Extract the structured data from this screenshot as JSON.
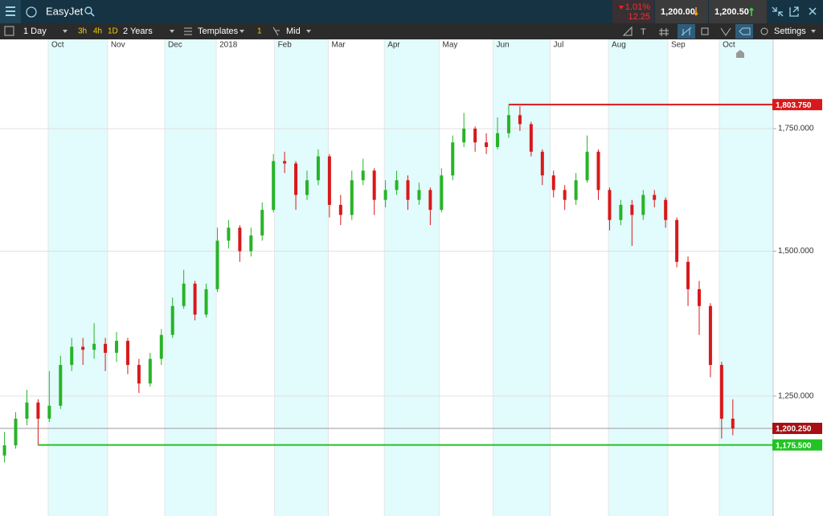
{
  "header": {
    "title": "EasyJet",
    "change_pct": "1.01%",
    "change": "12.25",
    "sell": "1,200.00",
    "buy": "1,200.50"
  },
  "toolbar": {
    "interval": "1 Day",
    "quick": [
      "3h",
      "4h",
      "1D"
    ],
    "range": "2 Years",
    "templates": "Templates",
    "count": "1",
    "price_type": "Mid",
    "settings": "Settings"
  },
  "chart_data": {
    "type": "candlestick",
    "log_scale": true,
    "shade_alternate": true,
    "up_color": "#27b427",
    "down_color": "#d8191b",
    "categories": [
      null,
      null,
      null,
      null,
      null,
      null,
      null,
      null,
      null,
      null,
      null,
      null,
      null,
      null,
      null,
      null,
      null,
      null,
      null,
      null,
      null,
      null,
      null,
      null,
      null,
      null,
      null,
      null,
      null,
      null,
      null,
      null,
      null,
      null,
      null,
      null,
      null,
      null,
      null,
      null,
      null,
      null,
      null,
      null,
      null,
      null,
      null,
      null,
      null,
      null,
      null,
      null,
      null,
      null,
      null,
      null,
      null,
      null,
      null,
      null,
      null,
      null,
      null,
      null,
      null,
      null
    ],
    "open": [
      1160,
      1175,
      1215,
      1240,
      1215,
      1235,
      1300,
      1330,
      1325,
      1335,
      1320,
      1340,
      1300,
      1270,
      1310,
      1350,
      1400,
      1440,
      1385,
      1430,
      1520,
      1545,
      1500,
      1530,
      1580,
      1680,
      1675,
      1610,
      1640,
      1690,
      1590,
      1570,
      1640,
      1660,
      1600,
      1620,
      1640,
      1600,
      1620,
      1580,
      1650,
      1720,
      1750,
      1720,
      1710,
      1740,
      1780,
      1760,
      1700,
      1650,
      1620,
      1600,
      1640,
      1700,
      1620,
      1560,
      1590,
      1570,
      1610,
      1600,
      1560,
      1480,
      1430,
      1400,
      1300,
      1215
    ],
    "high": [
      1195,
      1225,
      1260,
      1245,
      1290,
      1315,
      1345,
      1345,
      1370,
      1345,
      1355,
      1345,
      1310,
      1320,
      1360,
      1415,
      1465,
      1445,
      1440,
      1545,
      1560,
      1550,
      1545,
      1595,
      1695,
      1700,
      1680,
      1660,
      1705,
      1695,
      1610,
      1660,
      1685,
      1665,
      1640,
      1660,
      1650,
      1635,
      1625,
      1665,
      1735,
      1785,
      1755,
      1740,
      1775,
      1803.75,
      1800,
      1765,
      1705,
      1660,
      1630,
      1655,
      1735,
      1705,
      1625,
      1600,
      1600,
      1620,
      1620,
      1605,
      1565,
      1490,
      1445,
      1405,
      1305,
      1245
    ],
    "low": [
      1150,
      1170,
      1205,
      1175.5,
      1210,
      1230,
      1290,
      1300,
      1310,
      1290,
      1305,
      1285,
      1255,
      1265,
      1300,
      1345,
      1395,
      1375,
      1380,
      1425,
      1505,
      1480,
      1490,
      1520,
      1575,
      1655,
      1580,
      1600,
      1630,
      1565,
      1550,
      1560,
      1630,
      1570,
      1585,
      1610,
      1580,
      1590,
      1550,
      1575,
      1640,
      1710,
      1700,
      1695,
      1705,
      1730,
      1745,
      1690,
      1630,
      1605,
      1580,
      1590,
      1635,
      1600,
      1540,
      1550,
      1510,
      1560,
      1585,
      1545,
      1470,
      1400,
      1350,
      1280,
      1185,
      1190
    ],
    "close": [
      1175,
      1215,
      1240,
      1215,
      1235,
      1300,
      1330,
      1325,
      1335,
      1320,
      1340,
      1300,
      1270,
      1310,
      1350,
      1400,
      1440,
      1385,
      1430,
      1520,
      1545,
      1500,
      1530,
      1580,
      1680,
      1675,
      1610,
      1640,
      1690,
      1590,
      1570,
      1640,
      1660,
      1600,
      1620,
      1640,
      1600,
      1620,
      1580,
      1650,
      1720,
      1750,
      1720,
      1710,
      1740,
      1780,
      1760,
      1700,
      1650,
      1620,
      1600,
      1640,
      1700,
      1620,
      1560,
      1590,
      1570,
      1610,
      1600,
      1560,
      1480,
      1430,
      1400,
      1300,
      1215,
      1200.25
    ],
    "xlim": [
      -0.4,
      68.6
    ],
    "xticks": [
      {
        "value": 3.9,
        "label": "Oct"
      },
      {
        "value": 9.2,
        "label": "Nov"
      },
      {
        "value": 14.3,
        "label": "Dec"
      },
      {
        "value": 18.9,
        "label": "2018"
      },
      {
        "value": 24.1,
        "label": "Feb"
      },
      {
        "value": 28.9,
        "label": "Mar"
      },
      {
        "value": 33.9,
        "label": "Apr"
      },
      {
        "value": 38.8,
        "label": "May"
      },
      {
        "value": 43.6,
        "label": "Jun"
      },
      {
        "value": 48.7,
        "label": "Jul"
      },
      {
        "value": 53.9,
        "label": "Aug"
      },
      {
        "value": 59.2,
        "label": "Sep"
      },
      {
        "value": 63.8,
        "label": "Oct"
      }
    ],
    "ylim": [
      1075,
      1958
    ],
    "yticks": [
      {
        "value": 1250,
        "label": "1,250.000"
      },
      {
        "value": 1500,
        "label": "1,500.000"
      },
      {
        "value": 1750,
        "label": "1,750.000"
      }
    ],
    "levels": [
      {
        "value": 1803.75,
        "label": "1,803.750",
        "color": "#d8191b"
      },
      {
        "value": 1200.25,
        "label": "1,200.250",
        "color": "#a80f12"
      },
      {
        "value": 1175.5,
        "label": "1,175.500",
        "color": "#22c322"
      }
    ]
  }
}
